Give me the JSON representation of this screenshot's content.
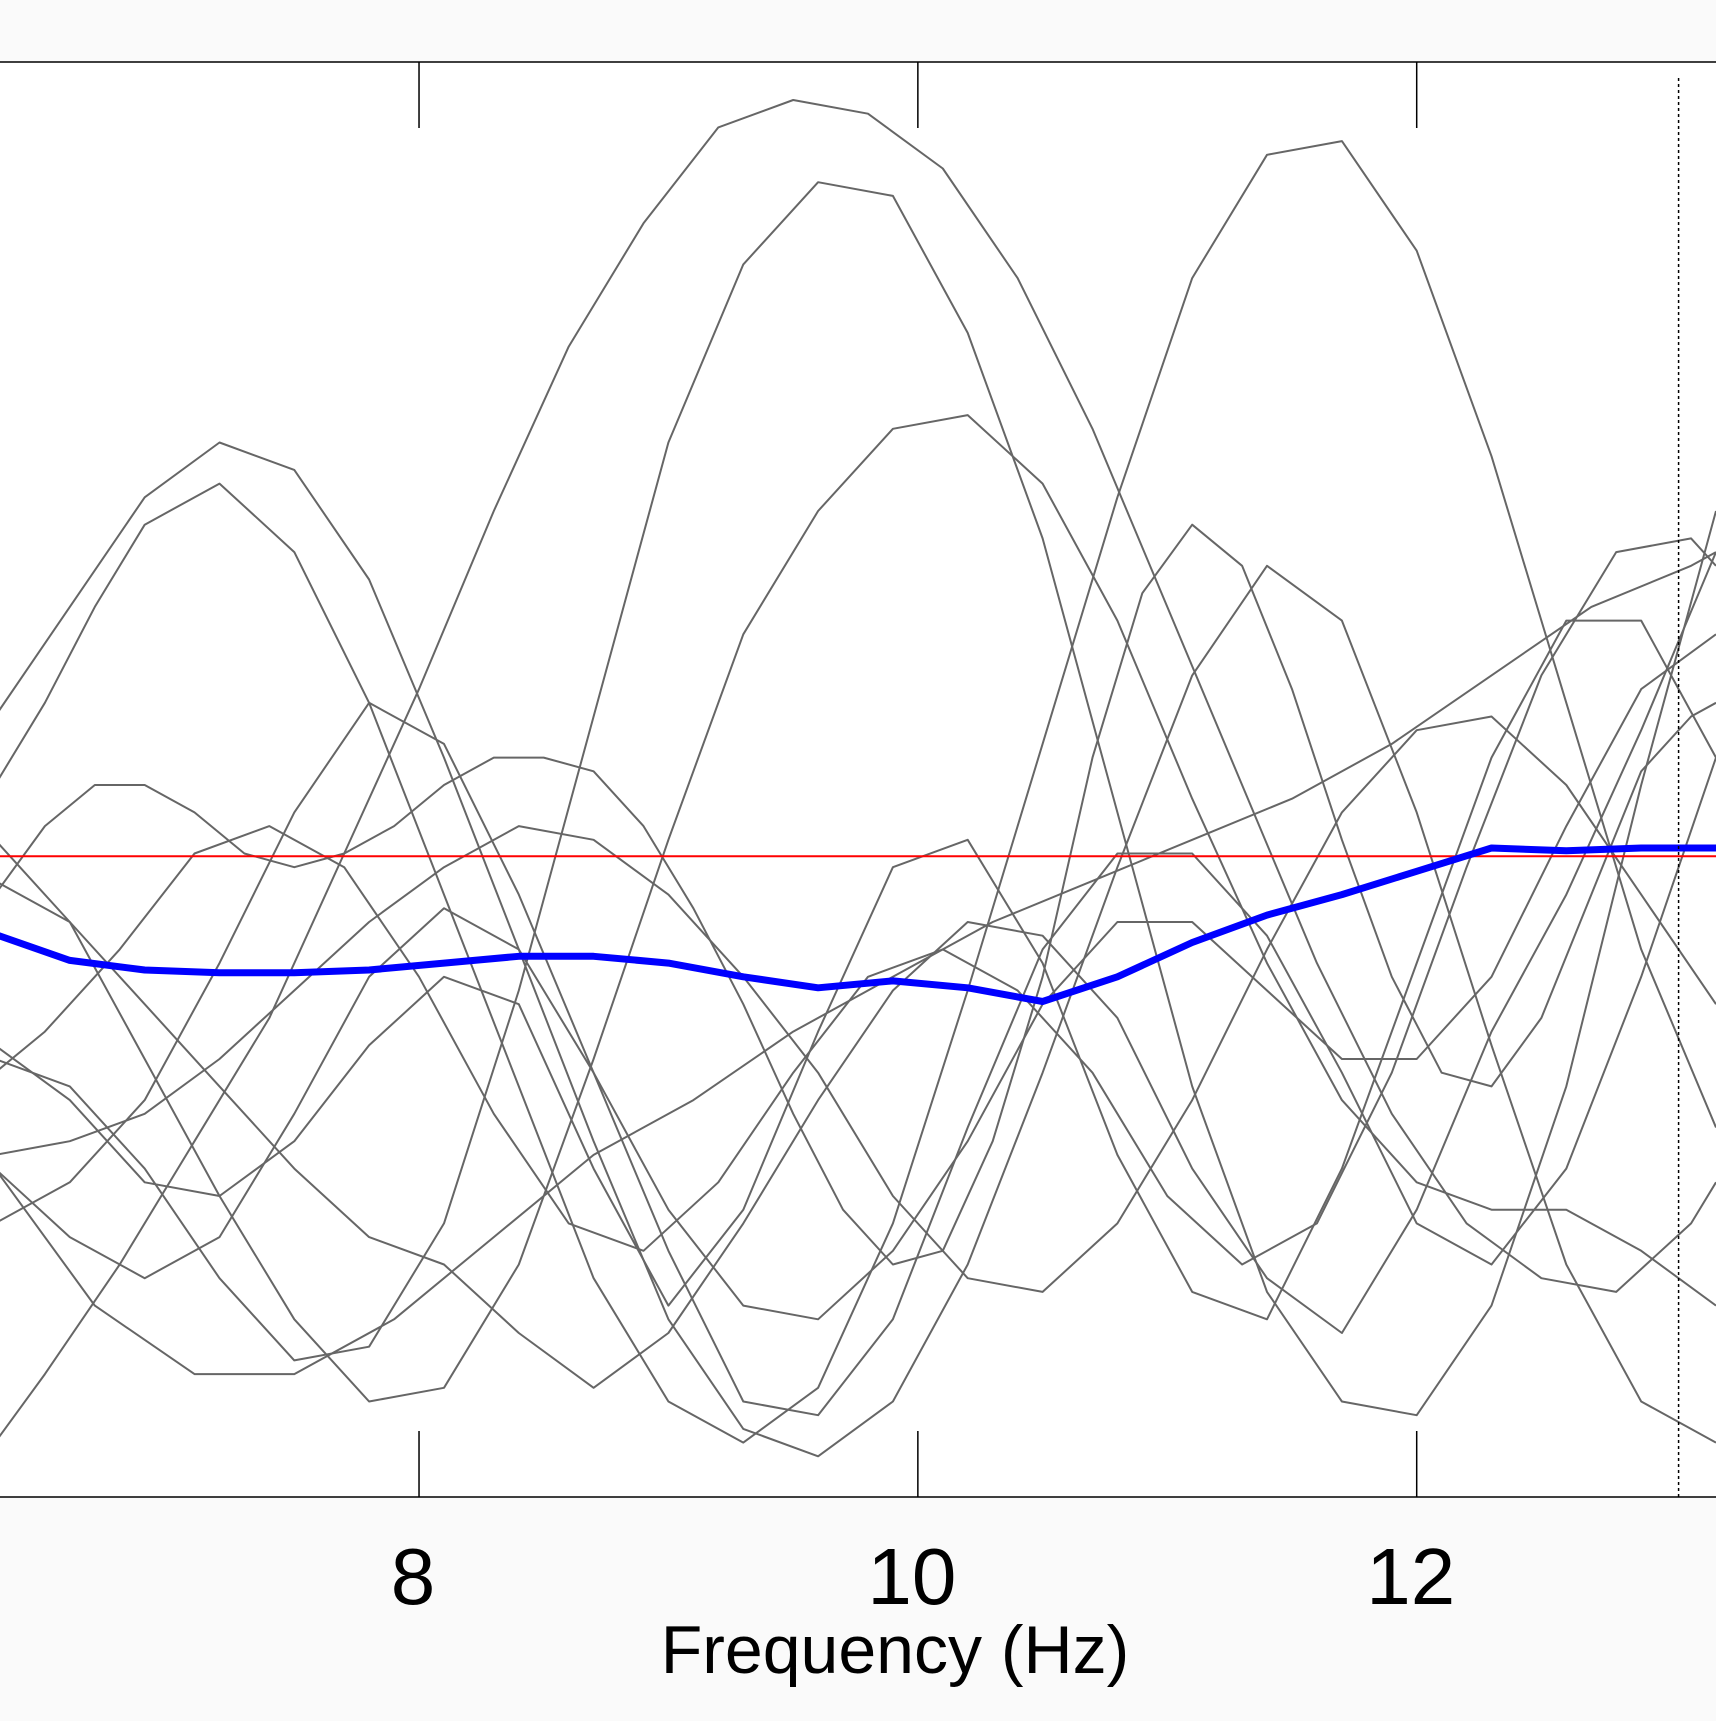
{
  "chart_data": {
    "type": "line",
    "title": "",
    "xlabel": "Frequency (Hz)",
    "ylabel": "",
    "xlim": [
      6.32,
      13.2
    ],
    "ylim": [
      0,
      1
    ],
    "x_ticks": [
      8,
      10,
      12
    ],
    "x_tick_labels": [
      "8",
      "10",
      "12"
    ],
    "grid": false,
    "reference_line_x": 13.05,
    "colors": {
      "individual": "#666666",
      "mean": "#0000ff",
      "reference": "#ff0000",
      "axes": "#000000",
      "background": "#fafafa"
    },
    "series": [
      {
        "role": "individual",
        "x": [
          6.3,
          6.5,
          6.8,
          7.1,
          7.4,
          7.7,
          8.0,
          8.3,
          8.6,
          8.9,
          9.2,
          9.5,
          9.8,
          10.1,
          10.4,
          10.7,
          11.0,
          11.3,
          11.6,
          11.9,
          12.2,
          12.5,
          12.8,
          13.1,
          13.2
        ],
        "y": [
          0.02,
          0.07,
          0.15,
          0.24,
          0.33,
          0.45,
          0.57,
          0.7,
          0.82,
          0.91,
          0.98,
          1.0,
          0.99,
          0.95,
          0.87,
          0.76,
          0.63,
          0.5,
          0.37,
          0.26,
          0.18,
          0.14,
          0.13,
          0.18,
          0.21
        ]
      },
      {
        "role": "individual",
        "x": [
          6.3,
          6.6,
          6.9,
          7.2,
          7.5,
          7.8,
          8.1,
          8.4,
          8.7,
          9.0,
          9.3,
          9.6,
          9.9,
          10.2,
          10.5,
          10.8,
          11.1,
          11.4,
          11.7,
          12.0,
          12.3,
          12.6,
          12.9,
          13.2
        ],
        "y": [
          0.55,
          0.63,
          0.71,
          0.75,
          0.73,
          0.65,
          0.52,
          0.38,
          0.24,
          0.11,
          0.03,
          0.01,
          0.05,
          0.15,
          0.29,
          0.44,
          0.58,
          0.66,
          0.62,
          0.48,
          0.31,
          0.15,
          0.05,
          0.02
        ]
      },
      {
        "role": "individual",
        "x": [
          6.3,
          6.5,
          6.7,
          6.9,
          7.2,
          7.5,
          7.8,
          8.1,
          8.4,
          8.7,
          9.0,
          9.3,
          9.6,
          9.9,
          10.2,
          10.5,
          10.8,
          11.1,
          11.4,
          11.7,
          12.0,
          12.3,
          12.6,
          12.9,
          13.2
        ],
        "y": [
          0.5,
          0.56,
          0.63,
          0.69,
          0.72,
          0.67,
          0.56,
          0.42,
          0.28,
          0.14,
          0.05,
          0.02,
          0.06,
          0.18,
          0.35,
          0.53,
          0.71,
          0.87,
          0.96,
          0.97,
          0.89,
          0.74,
          0.56,
          0.38,
          0.25
        ]
      },
      {
        "role": "individual",
        "x": [
          6.3,
          6.6,
          6.9,
          7.2,
          7.5,
          7.8,
          8.1,
          8.4,
          8.7,
          9.0,
          9.3,
          9.6,
          9.9,
          10.2,
          10.5,
          10.8,
          11.1,
          11.4,
          11.7,
          12.0,
          12.3,
          12.6,
          12.9,
          13.2
        ],
        "y": [
          0.3,
          0.28,
          0.22,
          0.14,
          0.08,
          0.09,
          0.18,
          0.35,
          0.55,
          0.75,
          0.88,
          0.94,
          0.93,
          0.83,
          0.68,
          0.48,
          0.28,
          0.13,
          0.05,
          0.04,
          0.12,
          0.28,
          0.5,
          0.7
        ]
      },
      {
        "role": "individual",
        "x": [
          6.3,
          6.5,
          6.7,
          6.9,
          7.1,
          7.3,
          7.5,
          7.7,
          7.9,
          8.1,
          8.3,
          8.5,
          8.7,
          8.9,
          9.1,
          9.3,
          9.5,
          9.7,
          9.9,
          10.1,
          10.3,
          10.5,
          10.7,
          10.9,
          11.1,
          11.3,
          11.5,
          11.7,
          11.9,
          12.1,
          12.3,
          12.5,
          12.7,
          12.9,
          13.1,
          13.2
        ],
        "y": [
          0.42,
          0.47,
          0.5,
          0.5,
          0.48,
          0.45,
          0.44,
          0.45,
          0.47,
          0.5,
          0.52,
          0.52,
          0.51,
          0.47,
          0.41,
          0.34,
          0.26,
          0.19,
          0.15,
          0.16,
          0.24,
          0.36,
          0.52,
          0.64,
          0.69,
          0.66,
          0.57,
          0.46,
          0.36,
          0.29,
          0.28,
          0.33,
          0.42,
          0.51,
          0.55,
          0.56
        ]
      },
      {
        "role": "individual",
        "x": [
          6.3,
          6.5,
          6.8,
          7.1,
          7.4,
          7.7,
          8.0,
          8.3,
          8.6,
          8.9,
          9.2,
          9.5,
          9.8,
          10.1,
          10.4,
          10.7,
          11.0,
          11.3,
          11.6,
          11.9,
          12.2,
          12.5,
          12.8,
          13.1,
          13.2
        ],
        "y": [
          0.29,
          0.32,
          0.38,
          0.45,
          0.47,
          0.44,
          0.36,
          0.26,
          0.18,
          0.16,
          0.21,
          0.29,
          0.36,
          0.38,
          0.35,
          0.29,
          0.2,
          0.15,
          0.18,
          0.29,
          0.44,
          0.58,
          0.67,
          0.68,
          0.66
        ]
      },
      {
        "role": "individual",
        "x": [
          6.3,
          6.6,
          6.9,
          7.2,
          7.5,
          7.8,
          8.1,
          8.4,
          8.7,
          9.0,
          9.3,
          9.6,
          9.9,
          10.2,
          10.5,
          10.8,
          11.1,
          11.4,
          11.7,
          12.0,
          12.3,
          12.6,
          12.9,
          13.2
        ],
        "y": [
          0.18,
          0.21,
          0.27,
          0.37,
          0.48,
          0.56,
          0.53,
          0.42,
          0.29,
          0.16,
          0.05,
          0.04,
          0.11,
          0.25,
          0.38,
          0.45,
          0.45,
          0.39,
          0.29,
          0.18,
          0.15,
          0.22,
          0.36,
          0.52
        ]
      },
      {
        "role": "individual",
        "x": [
          6.3,
          6.6,
          6.9,
          7.2,
          7.5,
          7.8,
          8.1,
          8.4,
          8.7,
          9.0,
          9.3,
          9.6,
          9.9,
          10.2,
          10.5,
          10.8,
          11.1,
          11.4,
          11.7,
          12.0,
          12.3,
          12.6,
          12.9,
          13.2
        ],
        "y": [
          0.22,
          0.17,
          0.14,
          0.17,
          0.26,
          0.36,
          0.41,
          0.38,
          0.29,
          0.19,
          0.12,
          0.11,
          0.16,
          0.24,
          0.34,
          0.4,
          0.4,
          0.35,
          0.3,
          0.3,
          0.36,
          0.47,
          0.57,
          0.61
        ]
      },
      {
        "role": "individual",
        "x": [
          6.3,
          6.6,
          6.9,
          7.2,
          7.5,
          7.8,
          8.1,
          8.4,
          8.7,
          9.0,
          9.3,
          9.6,
          9.9,
          10.2,
          10.5,
          10.8,
          11.1,
          11.4,
          11.7,
          12.0,
          12.3,
          12.6,
          12.9,
          13.2
        ],
        "y": [
          0.23,
          0.24,
          0.26,
          0.3,
          0.35,
          0.4,
          0.44,
          0.47,
          0.46,
          0.42,
          0.36,
          0.29,
          0.2,
          0.14,
          0.13,
          0.18,
          0.27,
          0.38,
          0.48,
          0.54,
          0.55,
          0.5,
          0.42,
          0.34
        ]
      },
      {
        "role": "individual",
        "x": [
          6.3,
          6.7,
          7.1,
          7.5,
          7.9,
          8.3,
          8.7,
          9.1,
          9.5,
          9.9,
          10.3,
          10.7,
          11.1,
          11.5,
          11.9,
          12.3,
          12.7,
          13.1,
          13.2
        ],
        "y": [
          0.22,
          0.12,
          0.07,
          0.07,
          0.11,
          0.17,
          0.23,
          0.27,
          0.32,
          0.36,
          0.4,
          0.43,
          0.46,
          0.49,
          0.53,
          0.58,
          0.63,
          0.66,
          0.67
        ]
      },
      {
        "role": "individual",
        "x": [
          6.3,
          6.6,
          6.9,
          7.2,
          7.5,
          7.8,
          8.1,
          8.4,
          8.7,
          9.0,
          9.3,
          9.6,
          9.9,
          10.2,
          10.5,
          10.8,
          11.1,
          11.4,
          11.7,
          12.0,
          12.3,
          12.6,
          12.9,
          13.2
        ],
        "y": [
          0.31,
          0.27,
          0.21,
          0.2,
          0.24,
          0.31,
          0.36,
          0.34,
          0.22,
          0.12,
          0.19,
          0.32,
          0.44,
          0.46,
          0.37,
          0.23,
          0.13,
          0.11,
          0.22,
          0.37,
          0.52,
          0.62,
          0.62,
          0.52
        ]
      },
      {
        "role": "individual",
        "x": [
          6.3,
          6.6,
          6.9,
          7.2,
          7.5,
          7.8,
          8.1,
          8.4,
          8.7,
          9.0,
          9.3,
          9.6,
          9.9,
          10.2,
          10.5,
          10.8,
          11.1,
          11.4,
          11.7,
          12.0,
          12.3,
          12.6,
          12.9,
          13.2
        ],
        "y": [
          0.43,
          0.4,
          0.34,
          0.28,
          0.22,
          0.17,
          0.15,
          0.1,
          0.06,
          0.1,
          0.18,
          0.27,
          0.35,
          0.4,
          0.39,
          0.33,
          0.22,
          0.14,
          0.1,
          0.19,
          0.32,
          0.42,
          0.54,
          0.67
        ]
      },
      {
        "role": "individual",
        "x": [
          6.3,
          6.6,
          6.9,
          7.2,
          7.5,
          7.8,
          8.1,
          8.4,
          8.7,
          9.0,
          9.3,
          9.6,
          9.9,
          10.2,
          10.5,
          10.8,
          11.1,
          11.4,
          11.7,
          12.0,
          12.3,
          12.6,
          12.9,
          13.2
        ],
        "y": [
          0.46,
          0.4,
          0.3,
          0.2,
          0.11,
          0.05,
          0.06,
          0.15,
          0.3,
          0.46,
          0.61,
          0.7,
          0.76,
          0.77,
          0.72,
          0.62,
          0.49,
          0.37,
          0.27,
          0.21,
          0.19,
          0.19,
          0.16,
          0.12
        ]
      },
      {
        "role": "reference",
        "x": [
          6.3,
          13.2
        ],
        "y": [
          0.448,
          0.448
        ]
      },
      {
        "role": "mean",
        "x": [
          6.3,
          6.6,
          6.9,
          7.2,
          7.5,
          7.8,
          8.1,
          8.4,
          8.7,
          9.0,
          9.3,
          9.6,
          9.9,
          10.2,
          10.5,
          10.8,
          11.1,
          11.4,
          11.7,
          12.0,
          12.3,
          12.6,
          12.9,
          13.2
        ],
        "y": [
          0.391,
          0.372,
          0.365,
          0.363,
          0.363,
          0.365,
          0.37,
          0.375,
          0.375,
          0.37,
          0.36,
          0.352,
          0.357,
          0.352,
          0.342,
          0.36,
          0.385,
          0.405,
          0.42,
          0.437,
          0.454,
          0.452,
          0.454,
          0.454
        ]
      }
    ]
  }
}
